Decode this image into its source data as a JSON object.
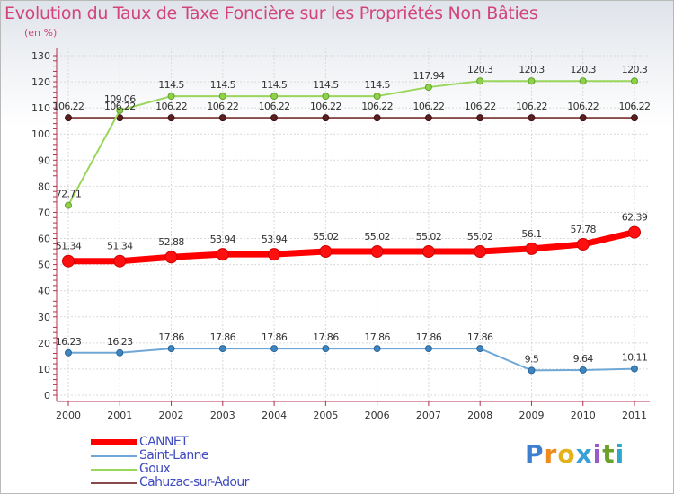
{
  "title": "Evolution du Taux de Taxe Foncière sur les Propriétés Non Bâties",
  "unit": "(en %)",
  "logo": {
    "text": "Proxiti",
    "letters": [
      "P",
      "r",
      "o",
      "x",
      "i",
      "t",
      "i"
    ],
    "colors": [
      "#3f7fd0",
      "#f08a1c",
      "#e3b21a",
      "#3aa0d8",
      "#9b59c6",
      "#6aa12b",
      "#2fa7c9"
    ]
  },
  "chart_data": {
    "type": "line",
    "title": "Evolution du Taux de Taxe Foncière sur les Propriétés Non Bâties",
    "xlabel": "",
    "ylabel": "(en %)",
    "ylim": [
      0,
      130
    ],
    "yticks": [
      "0",
      "10",
      "20",
      "30",
      "40",
      "50",
      "60",
      "70",
      "80",
      "90",
      "100",
      "110",
      "120",
      "130"
    ],
    "grid": true,
    "legend_position": "bottom-left",
    "categories": [
      "2000",
      "2001",
      "2002",
      "2003",
      "2004",
      "2005",
      "2006",
      "2007",
      "2008",
      "2009",
      "2010",
      "2011"
    ],
    "series": [
      {
        "name": "CANNET",
        "color": "#ff0000",
        "values": [
          51.34,
          51.34,
          52.88,
          53.94,
          53.94,
          55.02,
          55.02,
          55.02,
          55.02,
          56.1,
          57.78,
          62.39
        ],
        "labels": [
          "51.34",
          "51.34",
          "52.88",
          "53.94",
          "53.94",
          "55.02",
          "55.02",
          "55.02",
          "55.02",
          "56.1",
          "57.78",
          "62.39"
        ]
      },
      {
        "name": "Saint-Lanne",
        "color": "#6fa8d6",
        "values": [
          16.23,
          16.23,
          17.86,
          17.86,
          17.86,
          17.86,
          17.86,
          17.86,
          17.86,
          9.5,
          9.64,
          10.11
        ],
        "labels": [
          "16.23",
          "16.23",
          "17.86",
          "17.86",
          "17.86",
          "17.86",
          "17.86",
          "17.86",
          "17.86",
          "9.5",
          "9.64",
          "10.11"
        ]
      },
      {
        "name": "Goux",
        "color": "#9ad65c",
        "values": [
          72.71,
          109.06,
          114.5,
          114.5,
          114.5,
          114.5,
          114.5,
          117.94,
          120.3,
          120.3,
          120.3,
          120.3
        ],
        "labels": [
          "72.71",
          "109.06",
          "114.5",
          "114.5",
          "114.5",
          "114.5",
          "114.5",
          "117.94",
          "120.3",
          "120.3",
          "120.3",
          "120.3"
        ]
      },
      {
        "name": "Cahuzac-sur-Adour",
        "color": "#8a4a4a",
        "values": [
          106.22,
          106.22,
          106.22,
          106.22,
          106.22,
          106.22,
          106.22,
          106.22,
          106.22,
          106.22,
          106.22,
          106.22
        ],
        "labels": [
          "106.22",
          "106.22",
          "106.22",
          "106.22",
          "106.22",
          "106.22",
          "106.22",
          "106.22",
          "106.22",
          "106.22",
          "106.22",
          "106.22"
        ]
      }
    ]
  }
}
